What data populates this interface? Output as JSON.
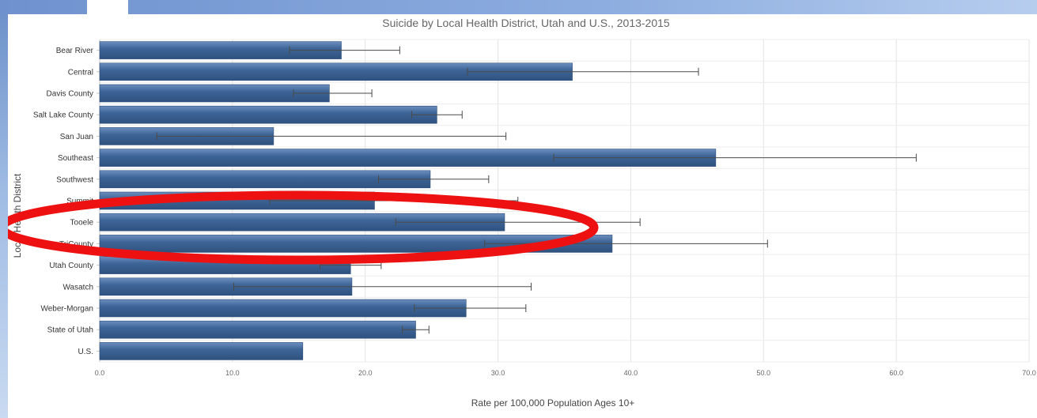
{
  "chart_data": {
    "type": "bar",
    "orientation": "horizontal",
    "title": "Suicide by Local Health District, Utah and U.S., 2013-2015",
    "xlabel": "Rate per 100,000 Population Ages 10+",
    "ylabel": "Local Health District",
    "xlim": [
      0,
      70
    ],
    "xticks": [
      "0.0",
      "10.0",
      "20.0",
      "30.0",
      "40.0",
      "50.0",
      "60.0",
      "70.0"
    ],
    "grid": true,
    "categories": [
      "Bear River",
      "Central",
      "Davis County",
      "Salt Lake County",
      "San Juan",
      "Southeast",
      "Southwest",
      "Summit",
      "Tooele",
      "TriCounty",
      "Utah County",
      "Wasatch",
      "Weber-Morgan",
      "State of Utah",
      "U.S."
    ],
    "values": [
      18.2,
      35.6,
      17.3,
      25.4,
      13.1,
      46.4,
      24.9,
      20.7,
      30.5,
      38.6,
      18.9,
      19.0,
      27.6,
      23.8,
      15.3
    ],
    "ci_low": [
      14.3,
      27.7,
      14.6,
      23.5,
      4.3,
      34.2,
      21.0,
      12.8,
      22.3,
      29.0,
      16.6,
      10.1,
      23.7,
      22.8,
      null
    ],
    "ci_high": [
      22.6,
      45.1,
      20.5,
      27.3,
      30.6,
      61.5,
      29.3,
      31.5,
      40.7,
      50.3,
      21.2,
      32.5,
      32.1,
      24.8,
      null
    ],
    "bar_color": "#3e6597",
    "highlight_color": "#ee1111",
    "highlighted_category": "Tooele"
  }
}
